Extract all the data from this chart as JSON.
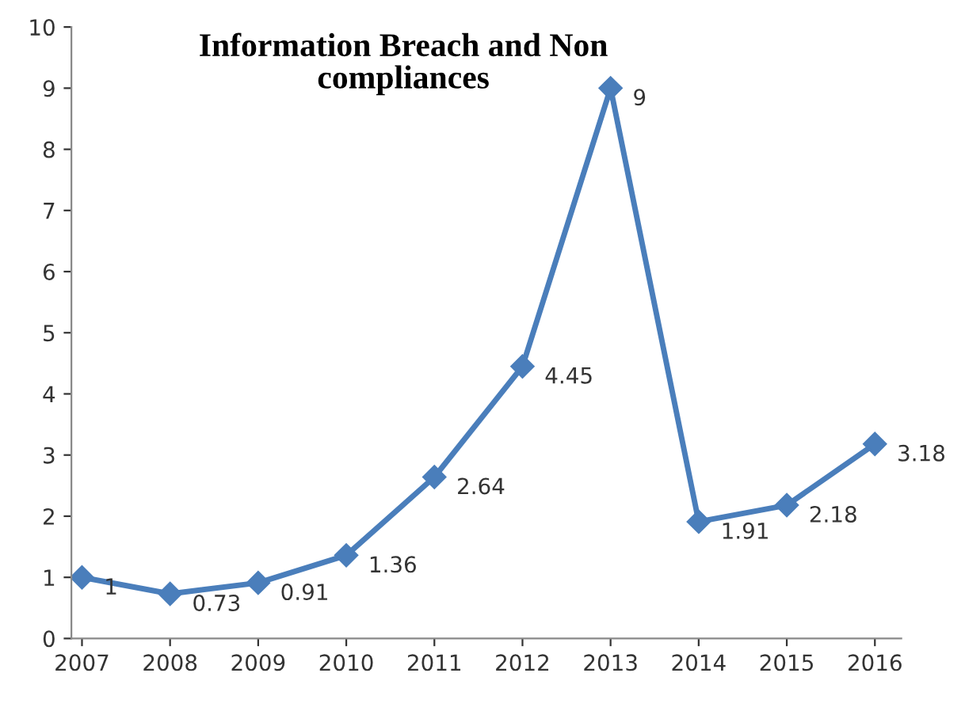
{
  "chart_data": {
    "type": "line",
    "title": "Information Breach and Non\ncompliances",
    "categories": [
      "2007",
      "2008",
      "2009",
      "2010",
      "2011",
      "2012",
      "2013",
      "2014",
      "2015",
      "2016"
    ],
    "series": [
      {
        "color": "#4a7ebb",
        "values": [
          1,
          0.73,
          0.91,
          1.36,
          2.64,
          4.45,
          9,
          1.91,
          2.18,
          3.18
        ]
      }
    ],
    "ylim": [
      0,
      10
    ],
    "yticks": [
      0,
      1,
      2,
      3,
      4,
      5,
      6,
      7,
      8,
      9,
      10
    ],
    "grid": false,
    "legend": false,
    "marker": "diamond",
    "line_style": "solid",
    "data_labels": true
  }
}
